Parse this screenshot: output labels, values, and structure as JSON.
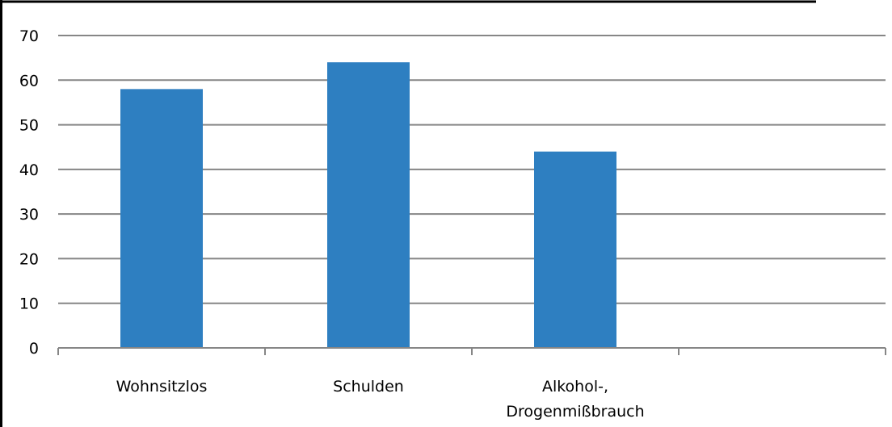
{
  "chart_data": {
    "type": "bar",
    "categories": [
      "Wohnsitzlos",
      "Schulden",
      "Alkohol-, Drogenmißbrauch",
      ""
    ],
    "category_label_lines": [
      [
        "Wohnsitzlos"
      ],
      [
        "Schulden"
      ],
      [
        "Alkohol-,",
        "Drogenmißbrauch"
      ],
      []
    ],
    "values": [
      58,
      64,
      44,
      null
    ],
    "yticks": [
      "0",
      "10",
      "20",
      "30",
      "40",
      "50",
      "60",
      "70"
    ],
    "ylim": [
      0,
      70
    ],
    "grid": true,
    "bar_color": "#2e7fc1",
    "grid_color": "#868686",
    "frame_color": "#000000"
  }
}
